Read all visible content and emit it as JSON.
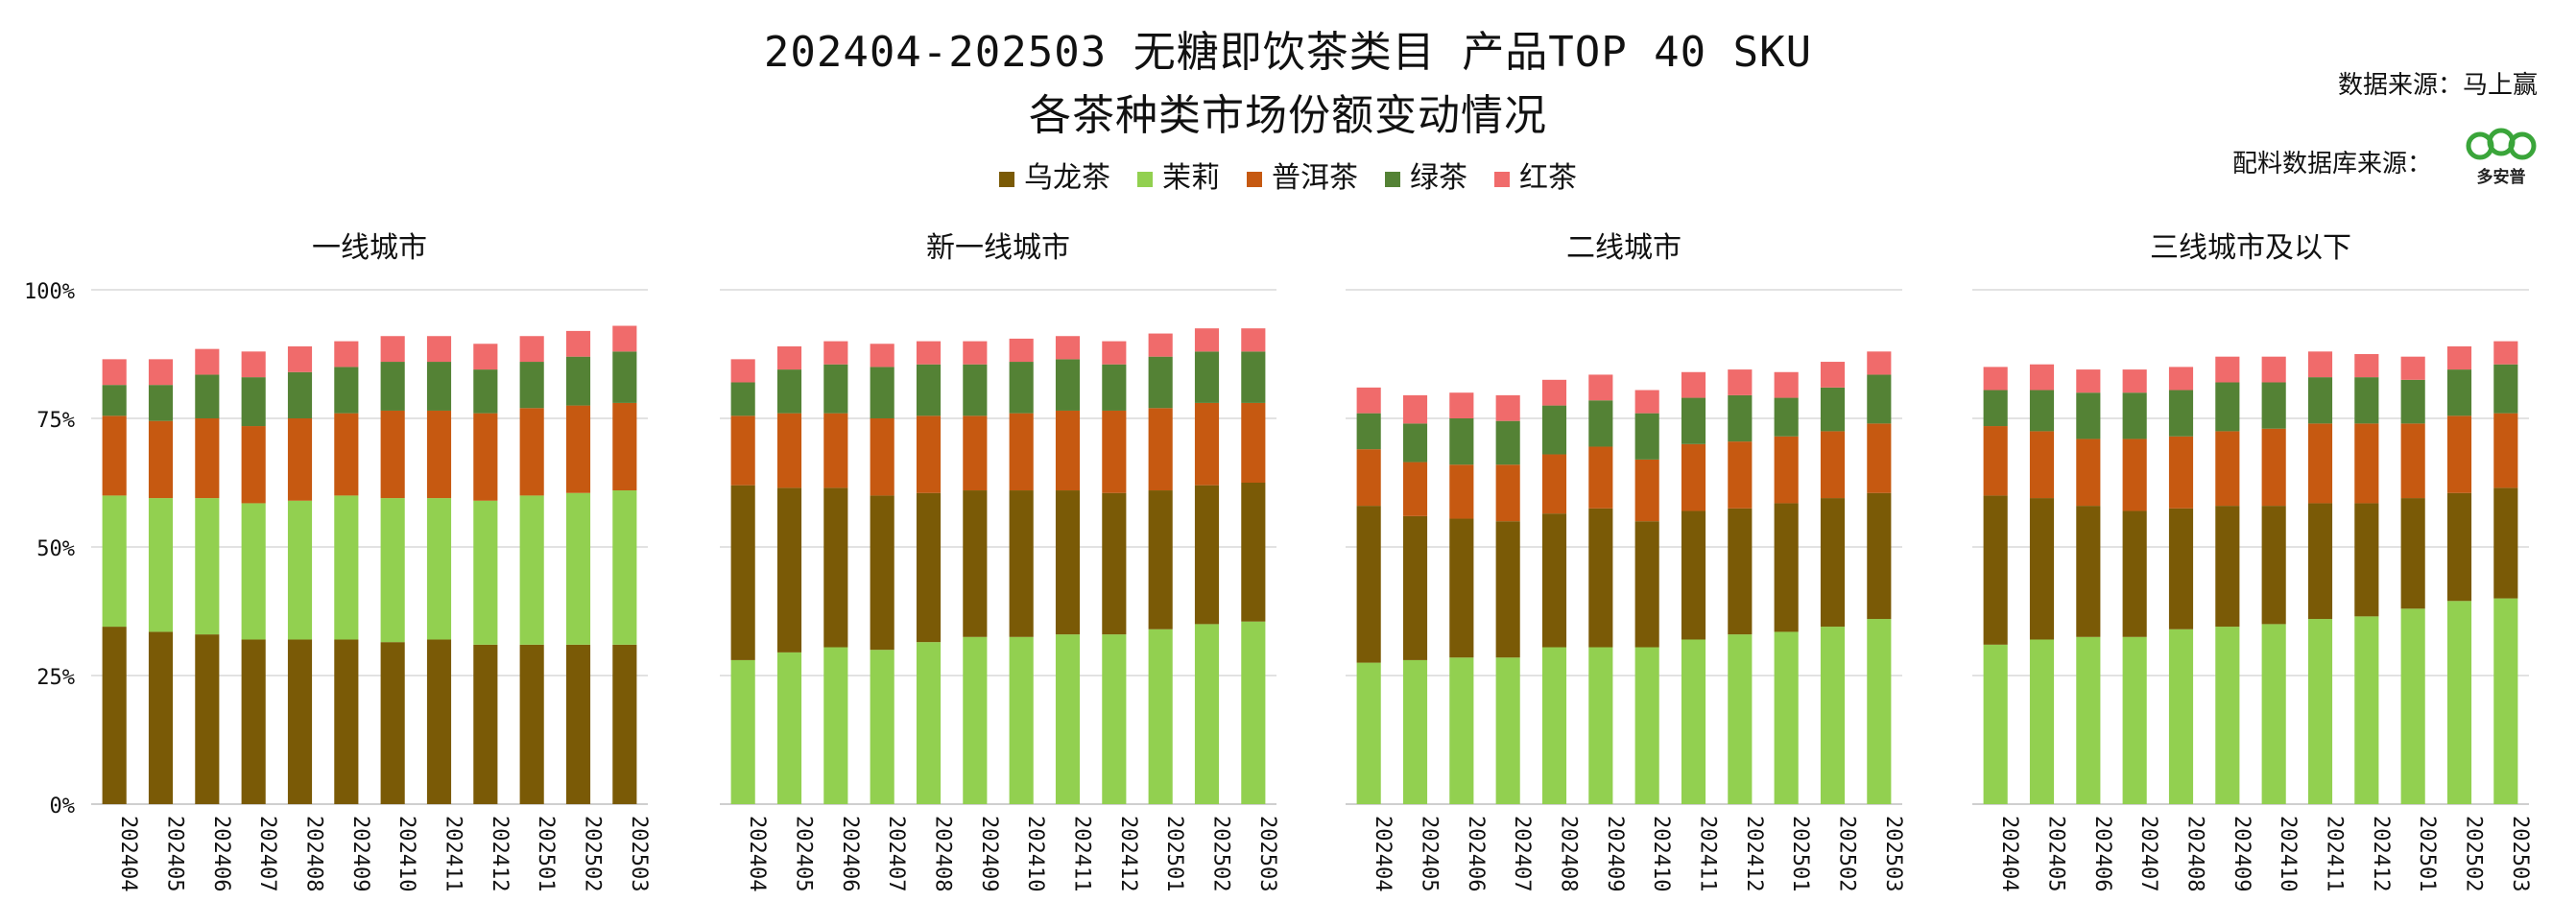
{
  "title_line1": "202404-202503 无糖即饮茶类目 产品TOP 40 SKU",
  "title_line2": "各茶种类市场份额变动情况",
  "source_data": "数据来源：马上赢",
  "source_ingredients": "配料数据库来源：",
  "logo_text": "多安普",
  "colors": {
    "乌龙茶": "#7a5a06",
    "茉莉": "#92d050",
    "普洱茶": "#c65911",
    "绿茶": "#548235",
    "红茶": "#f06b6b"
  },
  "legend": [
    "乌龙茶",
    "茉莉",
    "普洱茶",
    "绿茶",
    "红茶"
  ],
  "chart_data": [
    {
      "type": "bar",
      "title": "一线城市",
      "stack_order": [
        "乌龙茶",
        "茉莉",
        "普洱茶",
        "绿茶",
        "红茶"
      ],
      "categories": [
        "202404",
        "202405",
        "202406",
        "202407",
        "202408",
        "202409",
        "202410",
        "202411",
        "202412",
        "202501",
        "202502",
        "202503"
      ],
      "ylim": [
        0,
        100
      ],
      "yticks": [
        "0%",
        "25%",
        "50%",
        "75%",
        "100%"
      ],
      "series": [
        {
          "name": "乌龙茶",
          "values": [
            34.5,
            33.5,
            33,
            32,
            32,
            32,
            31.5,
            32,
            31,
            31,
            31,
            31
          ]
        },
        {
          "name": "茉莉",
          "values": [
            25.5,
            26,
            26.5,
            26.5,
            27,
            28,
            28,
            27.5,
            28,
            29,
            29.5,
            30
          ]
        },
        {
          "name": "普洱茶",
          "values": [
            15.5,
            15,
            15.5,
            15,
            16,
            16,
            17,
            17,
            17,
            17,
            17,
            17
          ]
        },
        {
          "name": "绿茶",
          "values": [
            6,
            7,
            8.5,
            9.5,
            9,
            9,
            9.5,
            9.5,
            8.5,
            9,
            9.5,
            10
          ]
        },
        {
          "name": "红茶",
          "values": [
            5,
            5,
            5,
            5,
            5,
            5,
            5,
            5,
            5,
            5,
            5,
            5
          ]
        }
      ]
    },
    {
      "type": "bar",
      "title": "新一线城市",
      "stack_order": [
        "茉莉",
        "乌龙茶",
        "普洱茶",
        "绿茶",
        "红茶"
      ],
      "categories": [
        "202404",
        "202405",
        "202406",
        "202407",
        "202408",
        "202409",
        "202410",
        "202411",
        "202412",
        "202501",
        "202502",
        "202503"
      ],
      "ylim": [
        0,
        100
      ],
      "yticks": [
        "0%",
        "25%",
        "50%",
        "75%",
        "100%"
      ],
      "series": [
        {
          "name": "茉莉",
          "values": [
            28,
            29.5,
            30.5,
            30,
            31.5,
            32.5,
            32.5,
            33,
            33,
            34,
            35,
            35.5
          ]
        },
        {
          "name": "乌龙茶",
          "values": [
            34,
            32,
            31,
            30,
            29,
            28.5,
            28.5,
            28,
            27.5,
            27,
            27,
            27
          ]
        },
        {
          "name": "普洱茶",
          "values": [
            13.5,
            14.5,
            14.5,
            15,
            15,
            14.5,
            15,
            15.5,
            16,
            16,
            16,
            15.5
          ]
        },
        {
          "name": "绿茶",
          "values": [
            6.5,
            8.5,
            9.5,
            10,
            10,
            10,
            10,
            10,
            9,
            10,
            10,
            10
          ]
        },
        {
          "name": "红茶",
          "values": [
            4.5,
            4.5,
            4.5,
            4.5,
            4.5,
            4.5,
            4.5,
            4.5,
            4.5,
            4.5,
            4.5,
            4.5
          ]
        }
      ]
    },
    {
      "type": "bar",
      "title": "二线城市",
      "stack_order": [
        "茉莉",
        "乌龙茶",
        "普洱茶",
        "绿茶",
        "红茶"
      ],
      "categories": [
        "202404",
        "202405",
        "202406",
        "202407",
        "202408",
        "202409",
        "202410",
        "202411",
        "202412",
        "202501",
        "202502",
        "202503"
      ],
      "ylim": [
        0,
        100
      ],
      "yticks": [
        "0%",
        "25%",
        "50%",
        "75%",
        "100%"
      ],
      "series": [
        {
          "name": "茉莉",
          "values": [
            27.5,
            28,
            28.5,
            28.5,
            30.5,
            30.5,
            30.5,
            32,
            33,
            33.5,
            34.5,
            36
          ]
        },
        {
          "name": "乌龙茶",
          "values": [
            30.5,
            28,
            27,
            26.5,
            26,
            27,
            24.5,
            25,
            24.5,
            25,
            25,
            24.5
          ]
        },
        {
          "name": "普洱茶",
          "values": [
            11,
            10.5,
            10.5,
            11,
            11.5,
            12,
            12,
            13,
            13,
            13,
            13,
            13.5
          ]
        },
        {
          "name": "绿茶",
          "values": [
            7,
            7.5,
            9,
            8.5,
            9.5,
            9,
            9,
            9,
            9,
            7.5,
            8.5,
            9.5
          ]
        },
        {
          "name": "红茶",
          "values": [
            5,
            5.5,
            5,
            5,
            5,
            5,
            4.5,
            5,
            5,
            5,
            5,
            4.5
          ]
        }
      ]
    },
    {
      "type": "bar",
      "title": "三线城市及以下",
      "stack_order": [
        "茉莉",
        "乌龙茶",
        "普洱茶",
        "绿茶",
        "红茶"
      ],
      "categories": [
        "202404",
        "202405",
        "202406",
        "202407",
        "202408",
        "202409",
        "202410",
        "202411",
        "202412",
        "202501",
        "202502",
        "202503"
      ],
      "ylim": [
        0,
        100
      ],
      "yticks": [
        "0%",
        "25%",
        "50%",
        "75%",
        "100%"
      ],
      "series": [
        {
          "name": "茉莉",
          "values": [
            31,
            32,
            32.5,
            32.5,
            34,
            34.5,
            35,
            36,
            36.5,
            38,
            39.5,
            40
          ]
        },
        {
          "name": "乌龙茶",
          "values": [
            29,
            27.5,
            25.5,
            24.5,
            23.5,
            23.5,
            23,
            22.5,
            22,
            21.5,
            21,
            21.5
          ]
        },
        {
          "name": "普洱茶",
          "values": [
            13.5,
            13,
            13,
            14,
            14,
            14.5,
            15,
            15.5,
            15.5,
            14.5,
            15,
            14.5
          ]
        },
        {
          "name": "绿茶",
          "values": [
            7,
            8,
            9,
            9,
            9,
            9.5,
            9,
            9,
            9,
            8.5,
            9,
            9.5
          ]
        },
        {
          "name": "红茶",
          "values": [
            4.5,
            5,
            4.5,
            4.5,
            4.5,
            5,
            5,
            5,
            4.5,
            4.5,
            4.5,
            4.5
          ]
        }
      ]
    }
  ]
}
